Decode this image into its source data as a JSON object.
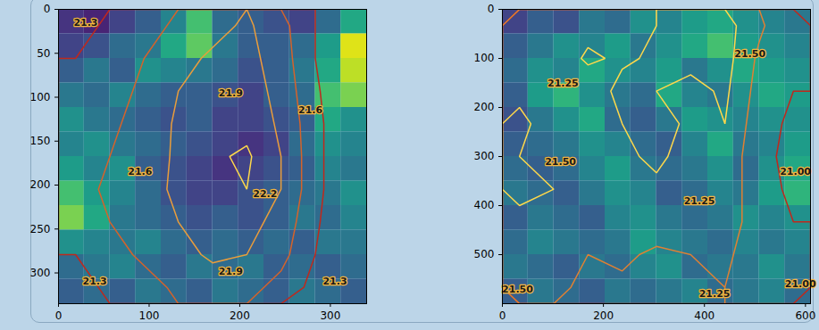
{
  "chart_data": [
    {
      "type": "heatmap",
      "xlim": [
        0,
        340
      ],
      "ylim": [
        335,
        0
      ],
      "xticks": [
        0,
        100,
        200,
        300
      ],
      "yticks": [
        0,
        50,
        100,
        150,
        200,
        250,
        300
      ],
      "zlim": [
        0,
        1
      ],
      "cells": [
        [
          0.15,
          0.1,
          0.2,
          0.3,
          0.45,
          0.7,
          0.35,
          0.3,
          0.25,
          0.2,
          0.35,
          0.6
        ],
        [
          0.2,
          0.25,
          0.35,
          0.4,
          0.6,
          0.75,
          0.4,
          0.3,
          0.3,
          0.35,
          0.55,
          0.95
        ],
        [
          0.3,
          0.4,
          0.3,
          0.5,
          0.45,
          0.4,
          0.35,
          0.25,
          0.3,
          0.4,
          0.6,
          0.9
        ],
        [
          0.4,
          0.35,
          0.45,
          0.35,
          0.3,
          0.3,
          0.25,
          0.2,
          0.3,
          0.35,
          0.7,
          0.8
        ],
        [
          0.5,
          0.4,
          0.35,
          0.3,
          0.25,
          0.3,
          0.2,
          0.2,
          0.25,
          0.3,
          0.6,
          0.5
        ],
        [
          0.45,
          0.5,
          0.4,
          0.35,
          0.3,
          0.25,
          0.2,
          0.15,
          0.2,
          0.35,
          0.5,
          0.45
        ],
        [
          0.55,
          0.45,
          0.5,
          0.3,
          0.25,
          0.2,
          0.15,
          0.2,
          0.25,
          0.3,
          0.45,
          0.4
        ],
        [
          0.7,
          0.55,
          0.45,
          0.35,
          0.25,
          0.2,
          0.2,
          0.25,
          0.3,
          0.35,
          0.4,
          0.5
        ],
        [
          0.8,
          0.6,
          0.4,
          0.35,
          0.3,
          0.25,
          0.3,
          0.25,
          0.3,
          0.4,
          0.35,
          0.45
        ],
        [
          0.5,
          0.45,
          0.4,
          0.45,
          0.35,
          0.3,
          0.35,
          0.3,
          0.35,
          0.3,
          0.4,
          0.4
        ],
        [
          0.35,
          0.4,
          0.45,
          0.35,
          0.3,
          0.4,
          0.35,
          0.4,
          0.3,
          0.35,
          0.3,
          0.35
        ],
        [
          0.3,
          0.35,
          0.3,
          0.4,
          0.35,
          0.3,
          0.4,
          0.35,
          0.3,
          0.4,
          0.35,
          0.3
        ]
      ],
      "contour_levels": [
        21.3,
        21.6,
        21.9,
        22.2
      ],
      "contour_field": [
        [
          21.2,
          21.35,
          21.5,
          21.65,
          21.8,
          21.95,
          21.7,
          21.3,
          21.0
        ],
        [
          21.3,
          21.45,
          21.6,
          21.8,
          21.95,
          22.0,
          21.75,
          21.3,
          21.0
        ],
        [
          21.4,
          21.5,
          21.65,
          21.9,
          22.0,
          22.05,
          21.8,
          21.35,
          21.0
        ],
        [
          21.5,
          21.55,
          21.7,
          21.95,
          22.1,
          22.1,
          21.85,
          21.4,
          21.0
        ],
        [
          21.55,
          21.6,
          21.75,
          21.95,
          22.15,
          22.25,
          21.9,
          21.4,
          21.0
        ],
        [
          21.5,
          21.65,
          21.8,
          21.95,
          22.1,
          22.2,
          21.9,
          21.4,
          21.0
        ],
        [
          21.4,
          21.6,
          21.75,
          21.9,
          22.0,
          22.0,
          21.8,
          21.35,
          21.0
        ],
        [
          21.3,
          21.5,
          21.65,
          21.8,
          21.95,
          21.9,
          21.7,
          21.3,
          21.0
        ],
        [
          21.2,
          21.35,
          21.5,
          21.65,
          21.75,
          21.7,
          21.5,
          21.2,
          21.0
        ]
      ],
      "annotations": [
        {
          "x": 30,
          "y": 15,
          "text": "21.3"
        },
        {
          "x": 190,
          "y": 95,
          "text": "21.9"
        },
        {
          "x": 278,
          "y": 115,
          "text": "21.6"
        },
        {
          "x": 90,
          "y": 185,
          "text": "21.6"
        },
        {
          "x": 228,
          "y": 210,
          "text": "22.2"
        },
        {
          "x": 190,
          "y": 298,
          "text": "21.9"
        },
        {
          "x": 40,
          "y": 310,
          "text": "21.3"
        },
        {
          "x": 305,
          "y": 310,
          "text": "21.3"
        }
      ]
    },
    {
      "type": "heatmap",
      "xlim": [
        0,
        610
      ],
      "ylim": [
        600,
        0
      ],
      "xticks": [
        0,
        200,
        400,
        600
      ],
      "yticks": [
        0,
        100,
        200,
        300,
        400,
        500
      ],
      "zlim": [
        0,
        1
      ],
      "cells": [
        [
          0.2,
          0.3,
          0.25,
          0.4,
          0.35,
          0.5,
          0.45,
          0.55,
          0.6,
          0.5,
          0.45,
          0.4
        ],
        [
          0.3,
          0.4,
          0.5,
          0.45,
          0.55,
          0.4,
          0.5,
          0.6,
          0.7,
          0.55,
          0.5,
          0.45
        ],
        [
          0.35,
          0.5,
          0.45,
          0.6,
          0.5,
          0.45,
          0.55,
          0.4,
          0.5,
          0.6,
          0.55,
          0.5
        ],
        [
          0.3,
          0.55,
          0.65,
          0.5,
          0.4,
          0.35,
          0.6,
          0.45,
          0.4,
          0.5,
          0.6,
          0.55
        ],
        [
          0.25,
          0.4,
          0.5,
          0.6,
          0.35,
          0.3,
          0.4,
          0.55,
          0.5,
          0.45,
          0.5,
          0.5
        ],
        [
          0.3,
          0.35,
          0.4,
          0.5,
          0.45,
          0.35,
          0.3,
          0.45,
          0.6,
          0.4,
          0.45,
          0.55
        ],
        [
          0.35,
          0.3,
          0.35,
          0.45,
          0.55,
          0.4,
          0.35,
          0.4,
          0.5,
          0.35,
          0.5,
          0.6
        ],
        [
          0.4,
          0.35,
          0.3,
          0.4,
          0.5,
          0.45,
          0.3,
          0.35,
          0.45,
          0.4,
          0.55,
          0.65
        ],
        [
          0.3,
          0.4,
          0.35,
          0.3,
          0.45,
          0.5,
          0.4,
          0.35,
          0.4,
          0.5,
          0.45,
          0.5
        ],
        [
          0.35,
          0.45,
          0.4,
          0.35,
          0.4,
          0.55,
          0.45,
          0.4,
          0.35,
          0.45,
          0.4,
          0.45
        ],
        [
          0.4,
          0.35,
          0.3,
          0.4,
          0.35,
          0.45,
          0.5,
          0.35,
          0.4,
          0.4,
          0.5,
          0.4
        ],
        [
          0.3,
          0.4,
          0.35,
          0.3,
          0.4,
          0.35,
          0.4,
          0.45,
          0.35,
          0.4,
          0.45,
          0.35
        ]
      ],
      "contour_levels": [
        21.0,
        21.25,
        21.5
      ],
      "contour_field": [
        [
          21.3,
          21.35,
          21.4,
          21.45,
          21.5,
          21.55,
          21.6,
          21.3,
          21.0
        ],
        [
          21.4,
          21.3,
          21.55,
          21.45,
          21.55,
          21.6,
          21.6,
          21.2,
          21.0
        ],
        [
          21.45,
          21.35,
          21.3,
          21.6,
          21.5,
          21.4,
          21.55,
          21.15,
          21.0
        ],
        [
          21.55,
          21.4,
          21.35,
          21.5,
          21.6,
          21.45,
          21.5,
          21.1,
          20.95
        ],
        [
          21.5,
          21.45,
          21.4,
          21.45,
          21.55,
          21.4,
          21.45,
          21.05,
          20.95
        ],
        [
          21.55,
          21.5,
          21.35,
          21.4,
          21.45,
          21.3,
          21.4,
          21.1,
          20.95
        ],
        [
          21.45,
          21.4,
          21.3,
          21.35,
          21.4,
          21.3,
          21.35,
          21.15,
          21.0
        ],
        [
          21.5,
          21.35,
          21.25,
          21.3,
          21.2,
          21.25,
          21.3,
          21.1,
          21.0
        ],
        [
          21.4,
          21.3,
          21.2,
          21.2,
          21.15,
          21.2,
          21.25,
          21.05,
          21.0
        ]
      ],
      "annotations": [
        {
          "x": 120,
          "y": 150,
          "text": "21.25"
        },
        {
          "x": 490,
          "y": 90,
          "text": "21.50"
        },
        {
          "x": 115,
          "y": 310,
          "text": "21.50"
        },
        {
          "x": 580,
          "y": 330,
          "text": "21.00"
        },
        {
          "x": 390,
          "y": 390,
          "text": "21.25"
        },
        {
          "x": 30,
          "y": 570,
          "text": "21.50"
        },
        {
          "x": 420,
          "y": 580,
          "text": "21.25"
        },
        {
          "x": 590,
          "y": 560,
          "text": "21.00"
        }
      ]
    }
  ]
}
